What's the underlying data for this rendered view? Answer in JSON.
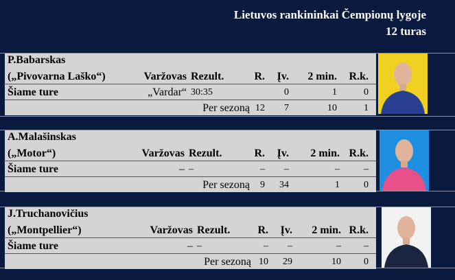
{
  "header": {
    "title": "Lietuvos rankininkai Čempionų lygoje",
    "round": "12 turas"
  },
  "columns": {
    "opponent": "Varžovas",
    "result": "Rezult.",
    "r": "R.",
    "iv": "Įv.",
    "two_min": "2 min.",
    "rk": "R.k."
  },
  "labels": {
    "this_round": "Šiame ture",
    "season": "Per sezoną"
  },
  "players": [
    {
      "name": "P.Babarskas",
      "club": "(„Pivovarna Laško“)",
      "round": {
        "opponent": "„Vardar“",
        "result": "30:35",
        "r": "",
        "iv": "0",
        "two_min": "1",
        "rk": "0"
      },
      "season": {
        "r": "12",
        "iv": "7",
        "two_min": "10",
        "rk": "1"
      },
      "photo_colors": [
        "#f0d020",
        "#2a3f8f"
      ]
    },
    {
      "name": "A.Malašinskas",
      "club": "(„Motor“)",
      "round": {
        "opponent": "–",
        "result": "–",
        "r": "–",
        "iv": "–",
        "two_min": "–",
        "rk": "–"
      },
      "season": {
        "r": "9",
        "iv": "34",
        "two_min": "1",
        "rk": "0"
      },
      "photo_colors": [
        "#1e8fe0",
        "#e8508a"
      ]
    },
    {
      "name": "J.Truchanovičius",
      "club": "(„Montpellier“)",
      "round": {
        "opponent": "–",
        "result": "–",
        "r": "–",
        "iv": "–",
        "two_min": "–",
        "rk": "–"
      },
      "season": {
        "r": "10",
        "iv": "29",
        "two_min": "10",
        "rk": "0"
      },
      "photo_colors": [
        "#f2f2f2",
        "#1c2540"
      ]
    }
  ]
}
